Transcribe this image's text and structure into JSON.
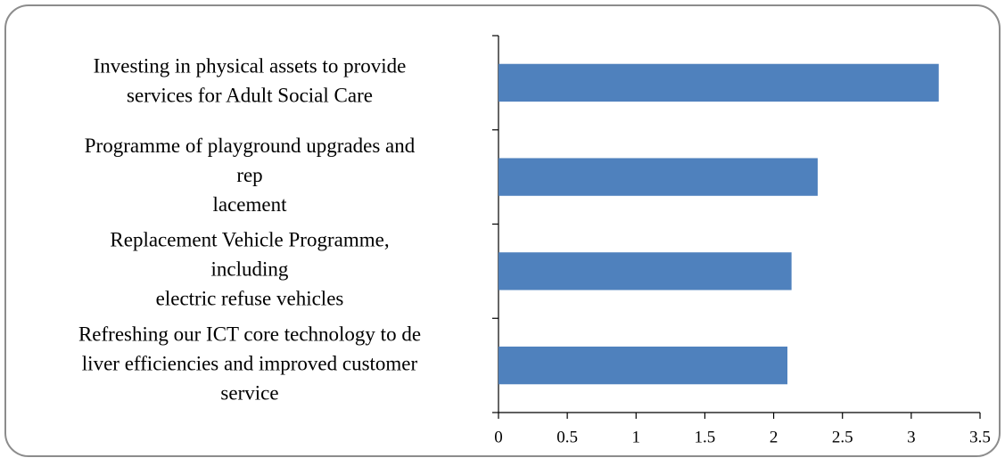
{
  "chart_data": {
    "type": "hbar",
    "categories": [
      [
        "Investing in physical assets to provide",
        "services for Adult Social Care"
      ],
      [
        "Programme of playground upgrades and",
        "rep",
        "lacement"
      ],
      [
        "Replacement Vehicle Programme,",
        "including",
        "electric refuse vehicles"
      ],
      [
        "Refreshing our ICT core technology to de",
        "liver efficiencies and improved customer",
        "service"
      ]
    ],
    "values": [
      3.2,
      2.32,
      2.13,
      2.1
    ],
    "color": "#4f81bd",
    "xlim": [
      0,
      3.5
    ],
    "xticks": [
      0,
      0.5,
      1,
      1.5,
      2,
      2.5,
      3,
      3.5
    ],
    "grid": false
  }
}
